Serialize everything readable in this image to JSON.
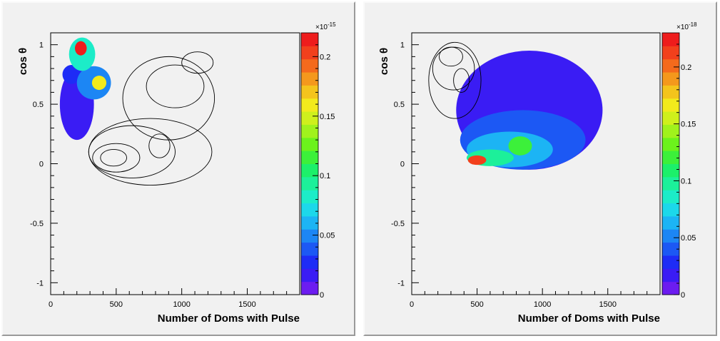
{
  "chart_data": [
    {
      "type": "heatmap",
      "xlabel": "Number of Doms with Pulse",
      "ylabel": "cos θ",
      "xlim": [
        0,
        1900
      ],
      "ylim": [
        -1.1,
        1.1
      ],
      "x_ticks": [
        "0",
        "500",
        "1000",
        "1500"
      ],
      "x_tick_values": [
        0,
        500,
        1000,
        1500
      ],
      "y_ticks": [
        "-1",
        "-0.5",
        "0",
        "0.5",
        "1"
      ],
      "y_tick_values": [
        -1,
        -0.5,
        0,
        0.5,
        1
      ],
      "colorbar": {
        "range": [
          0,
          0.22
        ],
        "ticks": [
          "0",
          "0.05",
          "0.1",
          "0.15",
          "0.2"
        ],
        "tick_values": [
          0,
          0.05,
          0.1,
          0.15,
          0.2
        ],
        "exponent": "×10^{-15}",
        "exponent_base": "×10",
        "exponent_power": "-15"
      },
      "filled_blobs": [
        {
          "x": 230,
          "y": 0.97,
          "rx": 45,
          "ry": 0.06,
          "level": 0.21
        },
        {
          "x": 240,
          "y": 0.92,
          "rx": 100,
          "ry": 0.14,
          "level": 0.08
        },
        {
          "x": 370,
          "y": 0.68,
          "rx": 55,
          "ry": 0.06,
          "level": 0.16
        },
        {
          "x": 330,
          "y": 0.68,
          "rx": 130,
          "ry": 0.14,
          "level": 0.05
        },
        {
          "x": 160,
          "y": 0.75,
          "rx": 70,
          "ry": 0.08,
          "level": 0.03
        },
        {
          "x": 200,
          "y": 0.5,
          "rx": 130,
          "ry": 0.3,
          "level": 0.015
        }
      ],
      "contours": [
        {
          "x": 480,
          "y": 0.05,
          "rx": 100,
          "ry": 0.07
        },
        {
          "x": 500,
          "y": 0.05,
          "rx": 180,
          "ry": 0.12
        },
        {
          "x": 620,
          "y": 0.1,
          "rx": 330,
          "ry": 0.22
        },
        {
          "x": 760,
          "y": 0.1,
          "rx": 470,
          "ry": 0.28
        },
        {
          "x": 830,
          "y": 0.15,
          "rx": 80,
          "ry": 0.1
        },
        {
          "x": 900,
          "y": 0.55,
          "rx": 350,
          "ry": 0.35
        },
        {
          "x": 950,
          "y": 0.65,
          "rx": 220,
          "ry": 0.18
        },
        {
          "x": 1120,
          "y": 0.85,
          "rx": 120,
          "ry": 0.09
        }
      ]
    },
    {
      "type": "heatmap",
      "xlabel": "Number of Doms with Pulse",
      "ylabel": "cos θ",
      "xlim": [
        0,
        1900
      ],
      "ylim": [
        -1.1,
        1.1
      ],
      "x_ticks": [
        "0",
        "500",
        "1000",
        "1500"
      ],
      "x_tick_values": [
        0,
        500,
        1000,
        1500
      ],
      "y_ticks": [
        "-1",
        "-0.5",
        "0",
        "0.5",
        "1"
      ],
      "y_tick_values": [
        -1,
        -0.5,
        0,
        0.5,
        1
      ],
      "colorbar": {
        "range": [
          0,
          0.23
        ],
        "ticks": [
          "0",
          "0.05",
          "0.1",
          "0.15",
          "0.2"
        ],
        "tick_values": [
          0,
          0.05,
          0.1,
          0.15,
          0.2
        ],
        "exponent": "×10^{-18}",
        "exponent_base": "×10",
        "exponent_power": "-18"
      },
      "filled_blobs": [
        {
          "x": 900,
          "y": 0.45,
          "rx": 560,
          "ry": 0.5,
          "level": 0.012
        },
        {
          "x": 850,
          "y": 0.2,
          "rx": 480,
          "ry": 0.25,
          "level": 0.035
        },
        {
          "x": 750,
          "y": 0.12,
          "rx": 330,
          "ry": 0.15,
          "level": 0.06
        },
        {
          "x": 830,
          "y": 0.15,
          "rx": 90,
          "ry": 0.08,
          "level": 0.12
        },
        {
          "x": 600,
          "y": 0.05,
          "rx": 180,
          "ry": 0.07,
          "level": 0.1
        },
        {
          "x": 500,
          "y": 0.03,
          "rx": 70,
          "ry": 0.04,
          "level": 0.21
        }
      ],
      "contours": [
        {
          "x": 300,
          "y": 0.9,
          "rx": 90,
          "ry": 0.08
        },
        {
          "x": 320,
          "y": 0.8,
          "rx": 160,
          "ry": 0.18
        },
        {
          "x": 330,
          "y": 0.7,
          "rx": 200,
          "ry": 0.32
        },
        {
          "x": 380,
          "y": 0.7,
          "rx": 60,
          "ry": 0.1
        }
      ]
    }
  ]
}
